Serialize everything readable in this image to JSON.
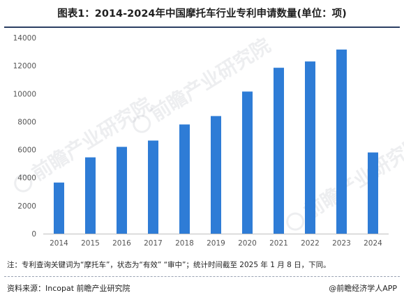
{
  "title": "图表1：2014-2024年中国摩托车行业专利申请数量(单位：项)",
  "chart_data": {
    "type": "bar",
    "categories": [
      "2014",
      "2015",
      "2016",
      "2017",
      "2018",
      "2019",
      "2020",
      "2021",
      "2022",
      "2023",
      "2024"
    ],
    "values": [
      3650,
      5450,
      6200,
      6650,
      7800,
      8400,
      10150,
      11850,
      12300,
      13150,
      5800
    ],
    "title": "图表1：2014-2024年中国摩托车行业专利申请数量(单位：项)",
    "xlabel": "",
    "ylabel": "",
    "ylim": [
      0,
      14000
    ],
    "yticks": [
      0,
      2000,
      4000,
      6000,
      8000,
      10000,
      12000,
      14000
    ],
    "grid": false,
    "legend": "none",
    "bar_color": "#2e7cd6",
    "axis_color": "#bfbfbf"
  },
  "footnote": "注：专利查询关键词为“摩托车”，状态为“有效” “审中”；统计时间截至 2025 年 1 月 8 日，下同。",
  "source": "资料来源：Incopat 前瞻产业研究院",
  "publisher": "@前瞻经济学人APP",
  "watermark": {
    "text": "前瞻产业研究院",
    "color": "#c9ccd2"
  }
}
